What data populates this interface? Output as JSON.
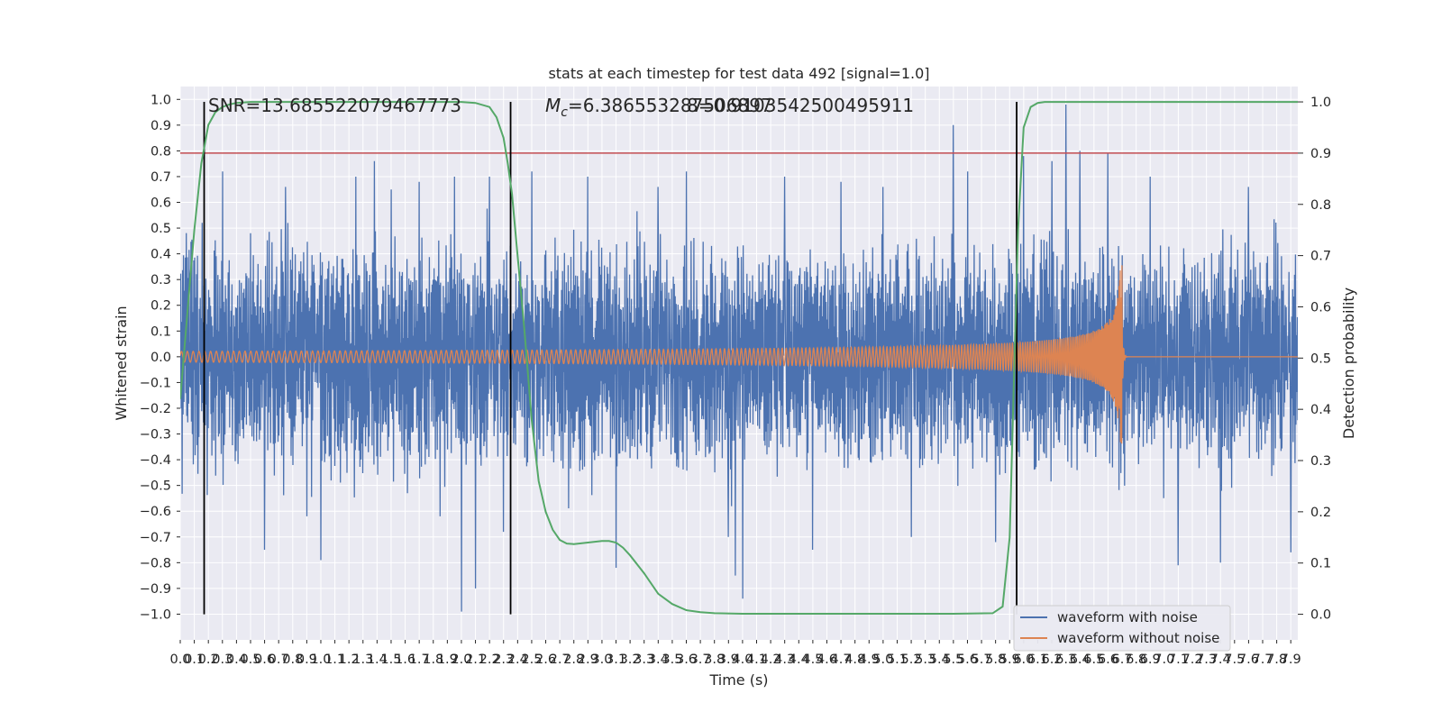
{
  "chart_data": {
    "type": "line",
    "title": "stats at each timestep for test data 492 [signal=1.0]",
    "xlabel": "Time (s)",
    "ylabel": "Whitened strain",
    "y2label": "Detection probability",
    "xlim": [
      0.0,
      7.95
    ],
    "ylim": [
      -1.1,
      1.05
    ],
    "y2lim": [
      -0.05,
      1.03
    ],
    "x_ticks": [
      0.0,
      0.1,
      0.2,
      0.3,
      0.4,
      0.5,
      0.6,
      0.7,
      0.8,
      0.9,
      1.0,
      1.1,
      1.2,
      1.3,
      1.4,
      1.5,
      1.6,
      1.7,
      1.8,
      1.9,
      2.0,
      2.1,
      2.2,
      2.3,
      2.4,
      2.5,
      2.6,
      2.7,
      2.8,
      2.9,
      3.0,
      3.1,
      3.2,
      3.3,
      3.4,
      3.5,
      3.6,
      3.7,
      3.8,
      3.9,
      4.0,
      4.1,
      4.2,
      4.3,
      4.4,
      4.5,
      4.6,
      4.7,
      4.8,
      4.9,
      5.0,
      5.1,
      5.2,
      5.3,
      5.4,
      5.5,
      5.6,
      5.7,
      5.8,
      5.9,
      6.0,
      6.1,
      6.2,
      6.3,
      6.4,
      6.5,
      6.6,
      6.7,
      6.8,
      6.9,
      7.0,
      7.1,
      7.2,
      7.3,
      7.4,
      7.5,
      7.6,
      7.7,
      7.8,
      7.9
    ],
    "x_tick_labels": [
      "0.0",
      "0.1",
      "0.2",
      "0.3",
      "0.4",
      "0.5",
      "0.6",
      "0.7",
      "0.8",
      "0.9",
      "1.0",
      "1.1",
      "1.2",
      "1.3",
      "1.4",
      "1.5",
      "1.6",
      "1.7",
      "1.8",
      "1.9",
      "2.0",
      "2.1",
      "2.2",
      "2.3",
      "2.4",
      "2.5",
      "2.6",
      "2.7",
      "2.8",
      "2.9",
      "3.0",
      "3.1",
      "3.2",
      "3.3",
      "3.4",
      "3.5",
      "3.6",
      "3.7",
      "3.8",
      "3.9",
      "4.0",
      "4.1",
      "4.2",
      "4.3",
      "4.4",
      "4.5",
      "4.6",
      "4.7",
      "4.8",
      "4.9",
      "5.0",
      "5.1",
      "5.2",
      "5.3",
      "5.4",
      "5.5",
      "5.6",
      "5.7",
      "5.8",
      "5.9",
      "6.0",
      "6.1",
      "6.2",
      "6.3",
      "6.4",
      "6.5",
      "6.6",
      "6.7",
      "6.8",
      "6.9",
      "7.0",
      "7.1",
      "7.2",
      "7.3",
      "7.4",
      "7.5",
      "7.6",
      "7.7",
      "7.8",
      "7.9"
    ],
    "y_ticks": [
      1.0,
      0.9,
      0.8,
      0.7,
      0.6,
      0.5,
      0.4,
      0.3,
      0.2,
      0.1,
      0.0,
      -0.1,
      -0.2,
      -0.3,
      -0.4,
      -0.5,
      -0.6,
      -0.7,
      -0.8,
      -0.9,
      -1.0
    ],
    "y_tick_labels": [
      "1.0",
      "0.9",
      "0.8",
      "0.7",
      "0.6",
      "0.5",
      "0.4",
      "0.3",
      "0.2",
      "0.1",
      "0.0",
      "−0.1",
      "−0.2",
      "−0.3",
      "−0.4",
      "−0.5",
      "−0.6",
      "−0.7",
      "−0.8",
      "−0.9",
      "−1.0"
    ],
    "y2_ticks": [
      1.0,
      0.9,
      0.8,
      0.7,
      0.6,
      0.5,
      0.4,
      0.3,
      0.2,
      0.1,
      0.0
    ],
    "y2_tick_labels": [
      "1.0",
      "0.9",
      "0.8",
      "0.7",
      "0.6",
      "0.5",
      "0.4",
      "0.3",
      "0.2",
      "0.1",
      "0.0"
    ],
    "grid": true,
    "legend_position": "bottom-right",
    "annotations": {
      "snr": "SNR=13.685522079467773",
      "mc_symbol": "M",
      "mc_subscript": "c",
      "mc_value": "=6.386553287506897",
      "overlap_value": "8=0.9103542500495911"
    },
    "threshold": {
      "value": 0.9,
      "axis": "y2",
      "color": "#c44e52"
    },
    "vertical_lines_x": [
      0.17,
      2.35,
      5.95
    ],
    "colors": {
      "noisy": "#4c72b0",
      "clean": "#dd8452",
      "probability": "#55a868",
      "background": "#eaeaf2",
      "grid": "#ffffff",
      "vline": "#000000"
    },
    "series": [
      {
        "name": "waveform with noise",
        "axis": "y",
        "color": "#4c72b0",
        "spikes": [
          [
            0.3,
            0.72
          ],
          [
            0.5,
            0.48
          ],
          [
            0.6,
            -0.75
          ],
          [
            0.75,
            0.66
          ],
          [
            0.9,
            -0.62
          ],
          [
            1.0,
            0.68
          ],
          [
            1.0,
            -0.79
          ],
          [
            1.25,
            0.7
          ],
          [
            1.38,
            0.76
          ],
          [
            1.5,
            0.65
          ],
          [
            1.7,
            0.68
          ],
          [
            1.85,
            -0.62
          ],
          [
            1.95,
            0.7
          ],
          [
            2.0,
            -0.99
          ],
          [
            2.1,
            -0.9
          ],
          [
            2.2,
            0.7
          ],
          [
            2.3,
            -0.68
          ],
          [
            2.5,
            0.72
          ],
          [
            2.9,
            0.7
          ],
          [
            3.1,
            -0.82
          ],
          [
            3.4,
            0.66
          ],
          [
            3.6,
            0.72
          ],
          [
            3.9,
            -0.7
          ],
          [
            3.95,
            -0.85
          ],
          [
            4.0,
            -0.94
          ],
          [
            4.3,
            0.7
          ],
          [
            4.5,
            -0.75
          ],
          [
            4.7,
            0.68
          ],
          [
            5.0,
            0.66
          ],
          [
            5.2,
            -0.7
          ],
          [
            5.5,
            0.9
          ],
          [
            5.6,
            0.72
          ],
          [
            5.8,
            -0.72
          ],
          [
            6.0,
            0.78
          ],
          [
            6.2,
            0.76
          ],
          [
            6.3,
            0.98
          ],
          [
            6.4,
            0.8
          ],
          [
            6.6,
            0.79
          ],
          [
            6.9,
            0.7
          ],
          [
            7.1,
            -0.81
          ],
          [
            7.4,
            -0.8
          ],
          [
            7.6,
            0.66
          ],
          [
            7.9,
            -0.76
          ]
        ]
      },
      {
        "name": "waveform without noise",
        "axis": "y",
        "color": "#dd8452"
      },
      {
        "axis": "y2",
        "color": "#55a868",
        "x": [
          0.0,
          0.03,
          0.06,
          0.1,
          0.15,
          0.2,
          0.25,
          0.3,
          0.35,
          0.4,
          0.5,
          0.6,
          1.0,
          1.5,
          2.0,
          2.1,
          2.2,
          2.25,
          2.3,
          2.33,
          2.36,
          2.4,
          2.45,
          2.5,
          2.55,
          2.6,
          2.65,
          2.7,
          2.75,
          2.8,
          2.9,
          3.0,
          3.05,
          3.1,
          3.15,
          3.2,
          3.3,
          3.4,
          3.5,
          3.6,
          3.7,
          3.8,
          4.0,
          5.0,
          5.5,
          5.78,
          5.85,
          5.9,
          5.93,
          5.96,
          6.0,
          6.05,
          6.1,
          6.15,
          6.3,
          7.95
        ],
        "values": [
          0.42,
          0.52,
          0.62,
          0.75,
          0.88,
          0.955,
          0.98,
          0.99,
          0.995,
          0.998,
          1.0,
          1.0,
          1.0,
          1.0,
          1.0,
          0.998,
          0.99,
          0.97,
          0.93,
          0.88,
          0.82,
          0.7,
          0.55,
          0.38,
          0.26,
          0.2,
          0.165,
          0.145,
          0.138,
          0.137,
          0.14,
          0.143,
          0.143,
          0.14,
          0.13,
          0.115,
          0.08,
          0.04,
          0.02,
          0.008,
          0.004,
          0.002,
          0.001,
          0.001,
          0.001,
          0.002,
          0.015,
          0.15,
          0.45,
          0.75,
          0.95,
          0.99,
          0.998,
          1.0,
          1.0,
          1.0
        ]
      }
    ],
    "legend": [
      "waveform with noise",
      "waveform without noise"
    ]
  }
}
